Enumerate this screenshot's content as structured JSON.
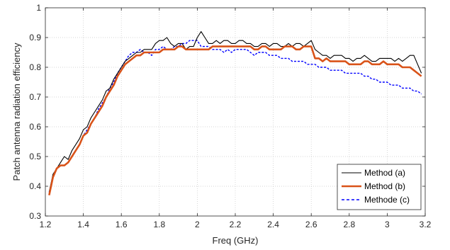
{
  "chart_data": {
    "type": "line",
    "xlabel": "Freq (GHz)",
    "ylabel": "Patch antenna radiation efficiency",
    "xlim": [
      1.2,
      3.2
    ],
    "ylim": [
      0.3,
      1.0
    ],
    "x_ticks": [
      "1.2",
      "1.4",
      "1.6",
      "1.8",
      "2",
      "2.2",
      "2.4",
      "2.6",
      "2.8",
      "3",
      "3.2"
    ],
    "y_ticks": [
      "0.3",
      "0.4",
      "0.5",
      "0.6",
      "0.7",
      "0.8",
      "0.9",
      "1"
    ],
    "grid": true,
    "legend_position": "bottom-right",
    "series": [
      {
        "name": "Method (a)",
        "color": "#000000",
        "style": "solid-thin",
        "x": [
          1.22,
          1.24,
          1.26,
          1.28,
          1.3,
          1.32,
          1.34,
          1.36,
          1.38,
          1.4,
          1.42,
          1.44,
          1.46,
          1.48,
          1.5,
          1.52,
          1.54,
          1.56,
          1.58,
          1.6,
          1.62,
          1.64,
          1.66,
          1.68,
          1.7,
          1.72,
          1.74,
          1.76,
          1.78,
          1.8,
          1.82,
          1.84,
          1.86,
          1.88,
          1.9,
          1.92,
          1.94,
          1.96,
          1.98,
          2.0,
          2.02,
          2.04,
          2.06,
          2.08,
          2.1,
          2.12,
          2.14,
          2.16,
          2.18,
          2.2,
          2.22,
          2.24,
          2.26,
          2.28,
          2.3,
          2.32,
          2.34,
          2.36,
          2.38,
          2.4,
          2.42,
          2.44,
          2.46,
          2.48,
          2.5,
          2.52,
          2.54,
          2.56,
          2.58,
          2.6,
          2.62,
          2.64,
          2.66,
          2.68,
          2.7,
          2.72,
          2.74,
          2.76,
          2.78,
          2.8,
          2.82,
          2.84,
          2.86,
          2.88,
          2.9,
          2.92,
          2.94,
          2.96,
          2.98,
          3.0,
          3.02,
          3.04,
          3.06,
          3.08,
          3.1,
          3.12,
          3.14,
          3.16,
          3.18
        ],
        "values": [
          0.38,
          0.44,
          0.46,
          0.48,
          0.5,
          0.49,
          0.52,
          0.54,
          0.56,
          0.59,
          0.6,
          0.63,
          0.65,
          0.67,
          0.69,
          0.72,
          0.73,
          0.76,
          0.78,
          0.8,
          0.82,
          0.83,
          0.84,
          0.85,
          0.85,
          0.86,
          0.86,
          0.86,
          0.88,
          0.89,
          0.89,
          0.9,
          0.88,
          0.87,
          0.88,
          0.88,
          0.86,
          0.87,
          0.87,
          0.9,
          0.92,
          0.9,
          0.88,
          0.88,
          0.89,
          0.88,
          0.89,
          0.89,
          0.88,
          0.88,
          0.89,
          0.89,
          0.88,
          0.88,
          0.87,
          0.87,
          0.88,
          0.88,
          0.87,
          0.88,
          0.88,
          0.87,
          0.87,
          0.88,
          0.87,
          0.88,
          0.88,
          0.87,
          0.88,
          0.89,
          0.86,
          0.85,
          0.84,
          0.84,
          0.83,
          0.84,
          0.84,
          0.84,
          0.83,
          0.83,
          0.82,
          0.83,
          0.83,
          0.84,
          0.83,
          0.82,
          0.82,
          0.83,
          0.83,
          0.83,
          0.83,
          0.82,
          0.83,
          0.82,
          0.83,
          0.84,
          0.84,
          0.81,
          0.78
        ]
      },
      {
        "name": "Method (b)",
        "color": "#D95319",
        "style": "solid-thick",
        "x": [
          1.22,
          1.24,
          1.26,
          1.28,
          1.3,
          1.32,
          1.34,
          1.36,
          1.38,
          1.4,
          1.42,
          1.44,
          1.46,
          1.48,
          1.5,
          1.52,
          1.54,
          1.56,
          1.58,
          1.6,
          1.62,
          1.64,
          1.66,
          1.68,
          1.7,
          1.72,
          1.74,
          1.76,
          1.78,
          1.8,
          1.82,
          1.84,
          1.86,
          1.88,
          1.9,
          1.92,
          1.94,
          1.96,
          1.98,
          2.0,
          2.02,
          2.04,
          2.06,
          2.08,
          2.1,
          2.12,
          2.14,
          2.16,
          2.18,
          2.2,
          2.22,
          2.24,
          2.26,
          2.28,
          2.3,
          2.32,
          2.34,
          2.36,
          2.38,
          2.4,
          2.42,
          2.44,
          2.46,
          2.48,
          2.5,
          2.52,
          2.54,
          2.56,
          2.58,
          2.6,
          2.62,
          2.64,
          2.66,
          2.68,
          2.7,
          2.72,
          2.74,
          2.76,
          2.78,
          2.8,
          2.82,
          2.84,
          2.86,
          2.88,
          2.9,
          2.92,
          2.94,
          2.96,
          2.98,
          3.0,
          3.02,
          3.04,
          3.06,
          3.08,
          3.1,
          3.12,
          3.14,
          3.16,
          3.18
        ],
        "values": [
          0.37,
          0.43,
          0.46,
          0.47,
          0.47,
          0.48,
          0.5,
          0.52,
          0.54,
          0.57,
          0.58,
          0.61,
          0.63,
          0.65,
          0.67,
          0.7,
          0.72,
          0.74,
          0.77,
          0.79,
          0.81,
          0.82,
          0.83,
          0.84,
          0.84,
          0.85,
          0.85,
          0.85,
          0.85,
          0.85,
          0.86,
          0.86,
          0.86,
          0.86,
          0.87,
          0.87,
          0.86,
          0.86,
          0.86,
          0.86,
          0.86,
          0.86,
          0.86,
          0.87,
          0.87,
          0.87,
          0.87,
          0.87,
          0.87,
          0.87,
          0.87,
          0.87,
          0.87,
          0.87,
          0.86,
          0.86,
          0.87,
          0.87,
          0.86,
          0.86,
          0.86,
          0.86,
          0.87,
          0.87,
          0.87,
          0.86,
          0.86,
          0.87,
          0.87,
          0.87,
          0.83,
          0.83,
          0.82,
          0.83,
          0.82,
          0.82,
          0.82,
          0.82,
          0.82,
          0.81,
          0.81,
          0.81,
          0.81,
          0.82,
          0.82,
          0.81,
          0.81,
          0.81,
          0.82,
          0.81,
          0.81,
          0.81,
          0.81,
          0.8,
          0.8,
          0.8,
          0.79,
          0.78,
          0.77
        ]
      },
      {
        "name": "Methode (c)",
        "color": "#0000FF",
        "style": "dashed",
        "x": [
          1.22,
          1.24,
          1.26,
          1.28,
          1.3,
          1.32,
          1.34,
          1.36,
          1.38,
          1.4,
          1.42,
          1.44,
          1.46,
          1.48,
          1.5,
          1.52,
          1.54,
          1.56,
          1.58,
          1.6,
          1.62,
          1.64,
          1.66,
          1.68,
          1.7,
          1.72,
          1.74,
          1.76,
          1.78,
          1.8,
          1.82,
          1.84,
          1.86,
          1.88,
          1.9,
          1.92,
          1.94,
          1.96,
          1.98,
          2.0,
          2.02,
          2.04,
          2.06,
          2.08,
          2.1,
          2.12,
          2.14,
          2.16,
          2.18,
          2.2,
          2.22,
          2.24,
          2.26,
          2.28,
          2.3,
          2.32,
          2.34,
          2.36,
          2.38,
          2.4,
          2.42,
          2.44,
          2.46,
          2.48,
          2.5,
          2.52,
          2.54,
          2.56,
          2.58,
          2.6,
          2.62,
          2.64,
          2.66,
          2.68,
          2.7,
          2.72,
          2.74,
          2.76,
          2.78,
          2.8,
          2.82,
          2.84,
          2.86,
          2.88,
          2.9,
          2.92,
          2.94,
          2.96,
          2.98,
          3.0,
          3.02,
          3.04,
          3.06,
          3.08,
          3.1,
          3.12,
          3.14,
          3.16,
          3.18
        ],
        "values": [
          0.38,
          0.43,
          0.46,
          0.47,
          0.47,
          0.48,
          0.5,
          0.52,
          0.54,
          0.57,
          0.59,
          0.61,
          0.63,
          0.66,
          0.68,
          0.7,
          0.73,
          0.75,
          0.78,
          0.8,
          0.82,
          0.84,
          0.85,
          0.85,
          0.86,
          0.85,
          0.85,
          0.84,
          0.86,
          0.86,
          0.87,
          0.86,
          0.86,
          0.87,
          0.87,
          0.88,
          0.88,
          0.89,
          0.89,
          0.89,
          0.87,
          0.87,
          0.87,
          0.86,
          0.86,
          0.86,
          0.85,
          0.86,
          0.85,
          0.86,
          0.86,
          0.86,
          0.86,
          0.85,
          0.84,
          0.85,
          0.85,
          0.85,
          0.84,
          0.84,
          0.84,
          0.83,
          0.83,
          0.83,
          0.82,
          0.82,
          0.82,
          0.82,
          0.81,
          0.81,
          0.81,
          0.8,
          0.8,
          0.8,
          0.79,
          0.79,
          0.79,
          0.79,
          0.78,
          0.78,
          0.78,
          0.78,
          0.78,
          0.77,
          0.77,
          0.76,
          0.76,
          0.75,
          0.75,
          0.75,
          0.74,
          0.74,
          0.74,
          0.73,
          0.73,
          0.73,
          0.72,
          0.72,
          0.71
        ]
      }
    ]
  }
}
